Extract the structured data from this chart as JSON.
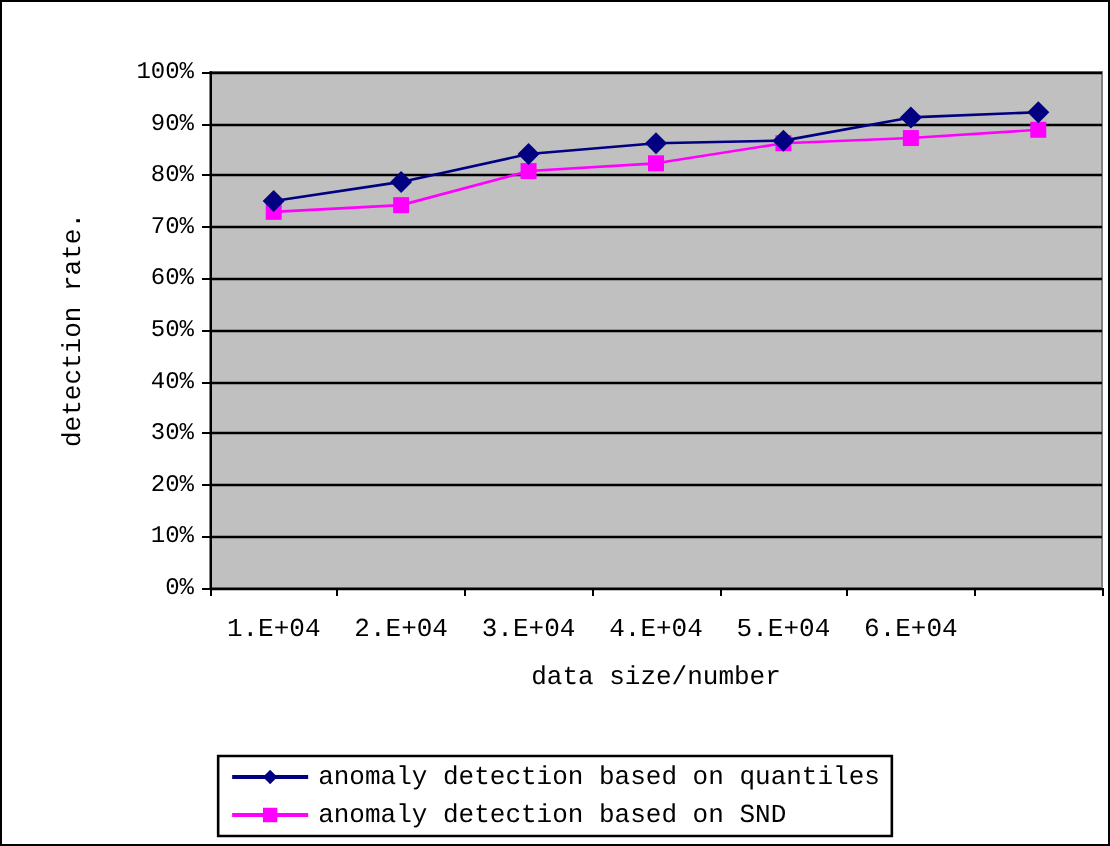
{
  "chart_data": {
    "type": "line",
    "xlabel": "data size/number",
    "ylabel": "detection rate.",
    "categories": [
      "1.E+04",
      "2.E+04",
      "3.E+04",
      "4.E+04",
      "5.E+04",
      "6.E+04",
      null
    ],
    "series": [
      {
        "name": "anomaly detection based on quantiles",
        "color": "#000080",
        "marker": "diamond",
        "values": [
          75.0,
          78.7,
          84.1,
          86.2,
          86.7,
          91.2,
          92.2
        ]
      },
      {
        "name": "anomaly detection based on SND",
        "color": "#ff00ff",
        "marker": "square",
        "values": [
          72.9,
          74.2,
          80.8,
          82.3,
          86.2,
          87.2,
          88.8
        ]
      }
    ],
    "ylim": [
      0,
      100
    ],
    "yticks": [
      {
        "value": 0,
        "label": "0%"
      },
      {
        "value": 10,
        "label": "10%"
      },
      {
        "value": 20,
        "label": "20%"
      },
      {
        "value": 30,
        "label": "30%"
      },
      {
        "value": 40,
        "label": "40%"
      },
      {
        "value": 50,
        "label": "50%"
      },
      {
        "value": 60,
        "label": "60%"
      },
      {
        "value": 70,
        "label": "70%"
      },
      {
        "value": 80,
        "label": "80%"
      },
      {
        "value": 90,
        "label": "90%"
      },
      {
        "value": 100,
        "label": "100%"
      }
    ],
    "grid": "y",
    "legend": "bottom",
    "line_style": "solid"
  }
}
